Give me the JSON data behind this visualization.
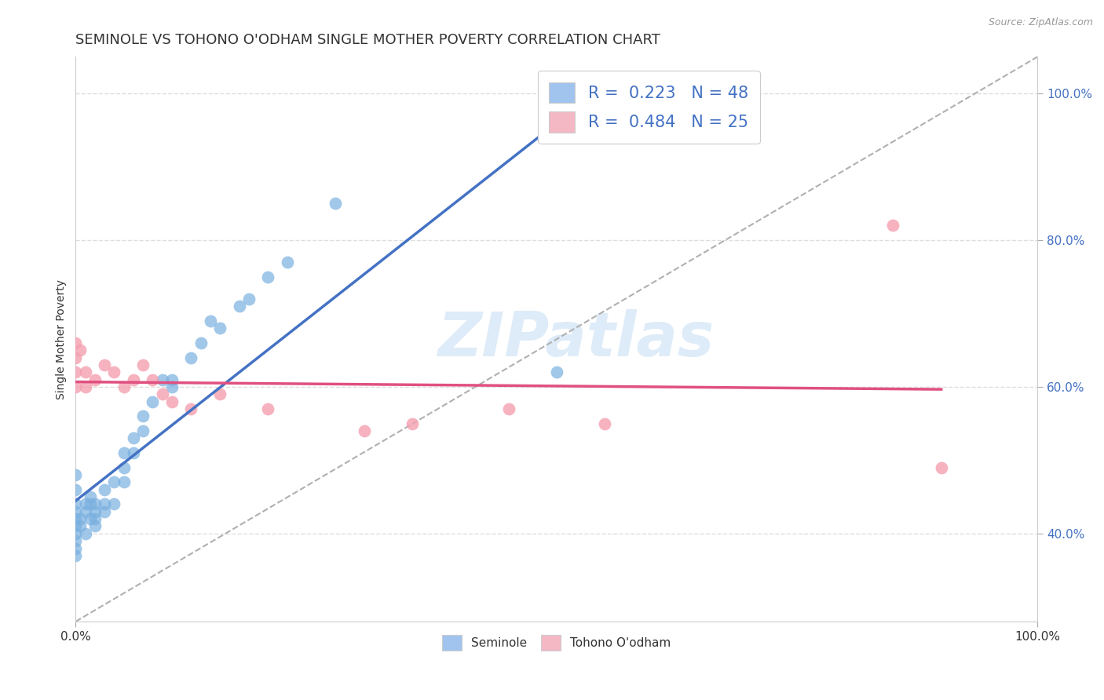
{
  "title": "SEMINOLE VS TOHONO O'ODHAM SINGLE MOTHER POVERTY CORRELATION CHART",
  "source": "Source: ZipAtlas.com",
  "ylabel": "Single Mother Poverty",
  "xlabel": "",
  "seminole_R": 0.223,
  "seminole_N": 48,
  "tohono_R": 0.484,
  "tohono_N": 25,
  "seminole_color": "#7ab0e0",
  "tohono_color": "#f4a0b0",
  "seminole_line_color": "#4472c4",
  "tohono_line_color": "#e05080",
  "legend_seminole_color": "#a0c4ee",
  "legend_tohono_color": "#f4b8c4",
  "watermark_color": "#c8dff4",
  "seminole_x": [
    0.0,
    0.0,
    0.0,
    0.0,
    0.0,
    0.0,
    0.0,
    0.0,
    0.0,
    0.0,
    0.005,
    0.005,
    0.01,
    0.01,
    0.01,
    0.015,
    0.015,
    0.015,
    0.02,
    0.02,
    0.02,
    0.02,
    0.03,
    0.03,
    0.03,
    0.04,
    0.04,
    0.05,
    0.05,
    0.05,
    0.06,
    0.06,
    0.07,
    0.07,
    0.08,
    0.09,
    0.1,
    0.1,
    0.12,
    0.13,
    0.14,
    0.15,
    0.17,
    0.18,
    0.2,
    0.22,
    0.27,
    0.5
  ],
  "seminole_y": [
    0.48,
    0.46,
    0.44,
    0.43,
    0.42,
    0.41,
    0.4,
    0.39,
    0.38,
    0.37,
    0.42,
    0.41,
    0.44,
    0.43,
    0.4,
    0.45,
    0.44,
    0.42,
    0.44,
    0.43,
    0.42,
    0.41,
    0.46,
    0.44,
    0.43,
    0.47,
    0.44,
    0.51,
    0.49,
    0.47,
    0.53,
    0.51,
    0.56,
    0.54,
    0.58,
    0.61,
    0.61,
    0.6,
    0.64,
    0.66,
    0.69,
    0.68,
    0.71,
    0.72,
    0.75,
    0.77,
    0.85,
    0.62
  ],
  "tohono_x": [
    0.0,
    0.0,
    0.0,
    0.0,
    0.005,
    0.01,
    0.01,
    0.02,
    0.03,
    0.04,
    0.05,
    0.06,
    0.07,
    0.08,
    0.09,
    0.1,
    0.12,
    0.15,
    0.2,
    0.3,
    0.35,
    0.45,
    0.55,
    0.85,
    0.9
  ],
  "tohono_y": [
    0.66,
    0.64,
    0.62,
    0.6,
    0.65,
    0.62,
    0.6,
    0.61,
    0.63,
    0.62,
    0.6,
    0.61,
    0.63,
    0.61,
    0.59,
    0.58,
    0.57,
    0.59,
    0.57,
    0.54,
    0.55,
    0.57,
    0.55,
    0.82,
    0.49
  ],
  "xlim": [
    0.0,
    1.0
  ],
  "ylim": [
    0.28,
    1.05
  ],
  "yticks": [
    0.4,
    0.6,
    0.8,
    1.0
  ],
  "ytick_labels": [
    "40.0%",
    "60.0%",
    "80.0%",
    "100.0%"
  ],
  "xtick_labels": [
    "0.0%",
    "100.0%"
  ],
  "xticks": [
    0.0,
    1.0
  ],
  "title_fontsize": 13,
  "axis_label_fontsize": 10,
  "tick_fontsize": 11,
  "background_color": "#ffffff",
  "grid_color": "#dddddd",
  "tick_color": "#4472c4",
  "spine_color": "#cccccc"
}
